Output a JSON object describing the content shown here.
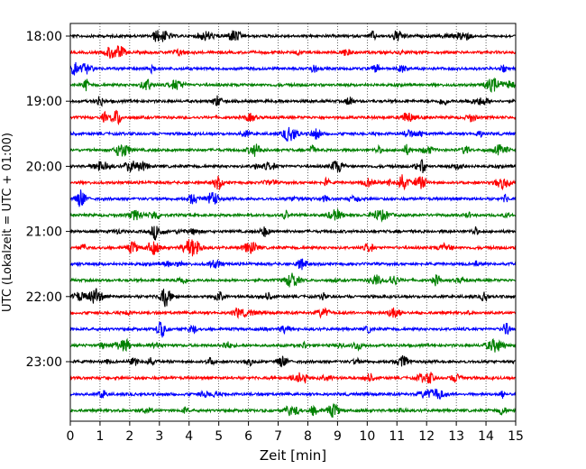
{
  "chart_data": {
    "type": "line",
    "title": "",
    "xlabel": "Zeit  [min]",
    "ylabel": "UTC (Lokalzeit = UTC + 01:00)",
    "xlim": [
      0,
      15
    ],
    "x_ticks": [
      "0",
      "1",
      "2",
      "3",
      "4",
      "5",
      "6",
      "7",
      "8",
      "9",
      "10",
      "11",
      "12",
      "13",
      "14",
      "15"
    ],
    "y_ticks": [
      "18:00",
      "19:00",
      "20:00",
      "21:00",
      "22:00",
      "23:00"
    ],
    "grid": "vertical dotted",
    "trace_interval_min": 15,
    "series": [
      {
        "start": "18:00",
        "color": "#000000"
      },
      {
        "start": "18:15",
        "color": "#ff0000"
      },
      {
        "start": "18:30",
        "color": "#0000ff"
      },
      {
        "start": "18:45",
        "color": "#008000"
      },
      {
        "start": "19:00",
        "color": "#000000"
      },
      {
        "start": "19:15",
        "color": "#ff0000"
      },
      {
        "start": "19:30",
        "color": "#0000ff"
      },
      {
        "start": "19:45",
        "color": "#008000"
      },
      {
        "start": "20:00",
        "color": "#000000"
      },
      {
        "start": "20:15",
        "color": "#ff0000"
      },
      {
        "start": "20:30",
        "color": "#0000ff"
      },
      {
        "start": "20:45",
        "color": "#008000"
      },
      {
        "start": "21:00",
        "color": "#000000"
      },
      {
        "start": "21:15",
        "color": "#ff0000"
      },
      {
        "start": "21:30",
        "color": "#0000ff"
      },
      {
        "start": "21:45",
        "color": "#008000"
      },
      {
        "start": "22:00",
        "color": "#000000"
      },
      {
        "start": "22:15",
        "color": "#ff0000"
      },
      {
        "start": "22:30",
        "color": "#0000ff"
      },
      {
        "start": "22:45",
        "color": "#008000"
      },
      {
        "start": "23:00",
        "color": "#000000"
      },
      {
        "start": "23:15",
        "color": "#ff0000"
      },
      {
        "start": "23:30",
        "color": "#0000ff"
      },
      {
        "start": "23:45",
        "color": "#008000"
      }
    ]
  }
}
